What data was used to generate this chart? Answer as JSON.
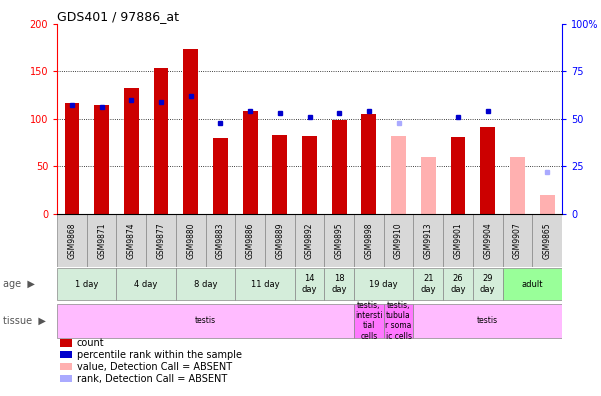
{
  "title": "GDS401 / 97886_at",
  "samples": [
    "GSM9868",
    "GSM9871",
    "GSM9874",
    "GSM9877",
    "GSM9880",
    "GSM9883",
    "GSM9886",
    "GSM9889",
    "GSM9892",
    "GSM9895",
    "GSM9898",
    "GSM9910",
    "GSM9913",
    "GSM9901",
    "GSM9904",
    "GSM9907",
    "GSM9865"
  ],
  "count_values": [
    117,
    115,
    132,
    153,
    173,
    80,
    108,
    83,
    82,
    99,
    105,
    null,
    null,
    81,
    91,
    null,
    null
  ],
  "rank_values": [
    57,
    56,
    60,
    59,
    62,
    48,
    54,
    53,
    51,
    53,
    54,
    null,
    null,
    51,
    54,
    null,
    null
  ],
  "absent_count": [
    null,
    null,
    null,
    null,
    null,
    null,
    null,
    null,
    null,
    null,
    null,
    82,
    60,
    null,
    null,
    60,
    20
  ],
  "absent_rank": [
    null,
    null,
    null,
    null,
    null,
    null,
    null,
    null,
    null,
    null,
    null,
    48,
    null,
    null,
    null,
    null,
    22
  ],
  "age_groups": [
    {
      "label": "1 day",
      "start": 0,
      "end": 2
    },
    {
      "label": "4 day",
      "start": 2,
      "end": 4
    },
    {
      "label": "8 day",
      "start": 4,
      "end": 6
    },
    {
      "label": "11 day",
      "start": 6,
      "end": 8
    },
    {
      "label": "14\nday",
      "start": 8,
      "end": 9
    },
    {
      "label": "18\nday",
      "start": 9,
      "end": 10
    },
    {
      "label": "19 day",
      "start": 10,
      "end": 12
    },
    {
      "label": "21\nday",
      "start": 12,
      "end": 13
    },
    {
      "label": "26\nday",
      "start": 13,
      "end": 14
    },
    {
      "label": "29\nday",
      "start": 14,
      "end": 15
    },
    {
      "label": "adult",
      "start": 15,
      "end": 17
    }
  ],
  "age_colors": [
    "#d4edda",
    "#d4edda",
    "#d4edda",
    "#d4edda",
    "#d4edda",
    "#d4edda",
    "#d4edda",
    "#d4edda",
    "#d4edda",
    "#d4edda",
    "#99ff99"
  ],
  "tissue_groups": [
    {
      "label": "testis",
      "start": 0,
      "end": 10
    },
    {
      "label": "testis,\nintersti\ntial\ncells",
      "start": 10,
      "end": 11
    },
    {
      "label": "testis,\ntubula\nr soma\nic cells",
      "start": 11,
      "end": 12
    },
    {
      "label": "testis",
      "start": 12,
      "end": 17
    }
  ],
  "tissue_colors": [
    "#ffbbff",
    "#ff77ff",
    "#ff77ff",
    "#ffbbff"
  ],
  "bar_color": "#cc0000",
  "absent_bar_color": "#ffb0b0",
  "rank_color": "#0000cc",
  "absent_rank_color": "#aaaaff",
  "ylim_left": [
    0,
    200
  ],
  "ylim_right": [
    0,
    100
  ],
  "grid_lines": [
    50,
    100,
    150
  ]
}
